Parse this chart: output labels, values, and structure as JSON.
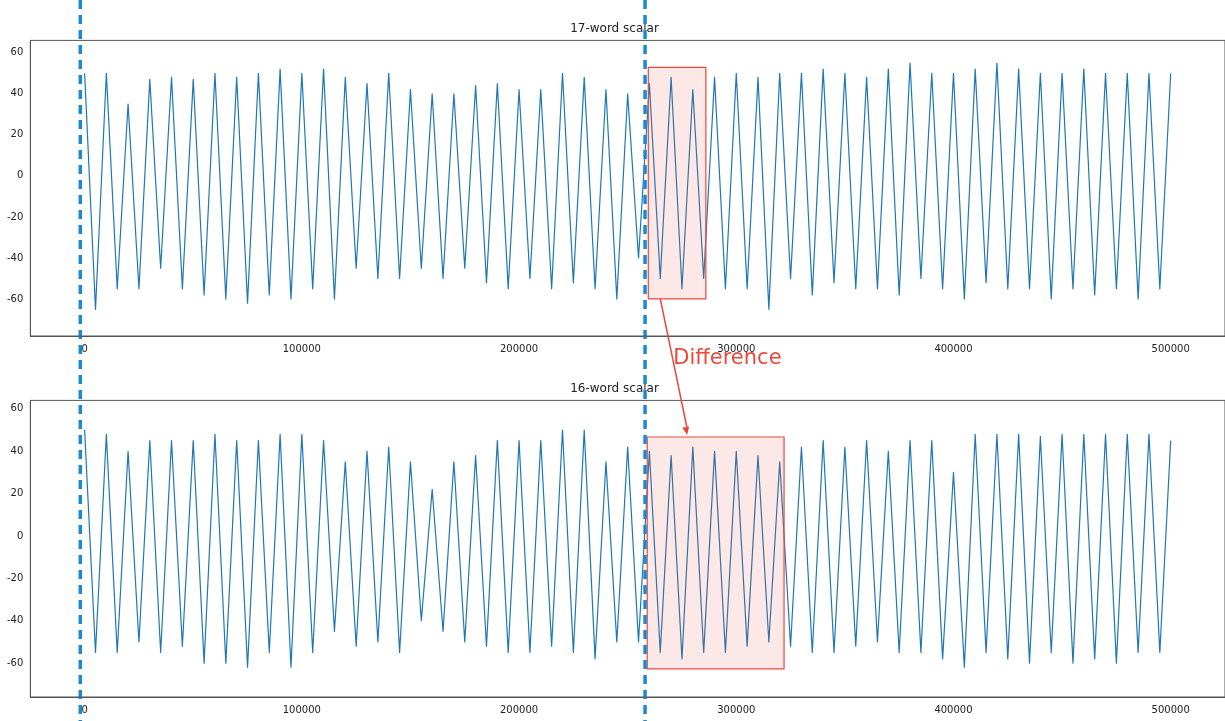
{
  "chart_data": [
    {
      "type": "line",
      "title": "17-word scalar",
      "x": [
        0,
        5000,
        10000,
        15000,
        20000,
        25000,
        30000,
        35000,
        40000,
        45000,
        50000,
        55000,
        60000,
        65000,
        70000,
        75000,
        80000,
        85000,
        90000,
        95000,
        100000,
        105000,
        110000,
        115000,
        120000,
        125000,
        130000,
        135000,
        140000,
        145000,
        150000,
        155000,
        160000,
        165000,
        170000,
        175000,
        180000,
        185000,
        190000,
        195000,
        200000,
        205000,
        210000,
        215000,
        220000,
        225000,
        230000,
        235000,
        240000,
        245000,
        250000,
        255000,
        260000,
        265000,
        270000,
        275000,
        280000,
        285000,
        290000,
        295000,
        300000,
        305000,
        310000,
        315000,
        320000,
        325000,
        330000,
        335000,
        340000,
        345000,
        350000,
        355000,
        360000,
        365000,
        370000,
        375000,
        380000,
        385000,
        390000,
        395000,
        400000,
        405000,
        410000,
        415000,
        420000,
        425000,
        430000,
        435000,
        440000,
        445000,
        450000,
        455000,
        460000,
        465000,
        470000,
        475000,
        480000,
        485000,
        490000,
        495000,
        500000
      ],
      "series": [
        {
          "color": "#1f77b4",
          "values": [
            50,
            -65,
            50,
            -55,
            35,
            -55,
            47,
            -45,
            48,
            -55,
            47,
            -58,
            50,
            -60,
            48,
            -62,
            50,
            -58,
            52,
            -60,
            50,
            -55,
            52,
            -60,
            48,
            -45,
            45,
            -50,
            50,
            -50,
            42,
            -45,
            40,
            -50,
            40,
            -45,
            44,
            -52,
            45,
            -55,
            42,
            -50,
            42,
            -55,
            50,
            -52,
            48,
            -55,
            42,
            -60,
            40,
            -40,
            45,
            -50,
            48,
            -55,
            42,
            -50,
            48,
            -55,
            50,
            -55,
            48,
            -65,
            50,
            -50,
            50,
            -58,
            52,
            -52,
            50,
            -55,
            48,
            -55,
            52,
            -58,
            55,
            -50,
            50,
            -55,
            50,
            -60,
            52,
            -52,
            55,
            -55,
            52,
            -55,
            50,
            -60,
            50,
            -55,
            52,
            -58,
            50,
            -55,
            50,
            -60,
            50,
            -55,
            50
          ]
        }
      ],
      "xlim": [
        -25000,
        525000
      ],
      "xticks": [
        0,
        100000,
        200000,
        300000,
        400000,
        500000
      ],
      "ylim": [
        -78,
        66
      ],
      "yticks": [
        -60,
        -40,
        -20,
        0,
        20,
        40,
        60
      ],
      "ref_lines": [
        {
          "axis": "x",
          "value": -2000,
          "color": "#1a8ad4",
          "line_style": "dashed"
        },
        {
          "axis": "x",
          "value": 258000,
          "color": "#1a8ad4",
          "line_style": "dashed"
        }
      ],
      "bands": [
        {
          "axis": "x",
          "from": 259500,
          "to": 286000,
          "color": "#e8483c"
        }
      ],
      "annotations": [
        "Difference"
      ]
    },
    {
      "type": "line",
      "title": "16-word scalar",
      "x": [
        0,
        5000,
        10000,
        15000,
        20000,
        25000,
        30000,
        35000,
        40000,
        45000,
        50000,
        55000,
        60000,
        65000,
        70000,
        75000,
        80000,
        85000,
        90000,
        95000,
        100000,
        105000,
        110000,
        115000,
        120000,
        125000,
        130000,
        135000,
        140000,
        145000,
        150000,
        155000,
        160000,
        165000,
        170000,
        175000,
        180000,
        185000,
        190000,
        195000,
        200000,
        205000,
        210000,
        215000,
        220000,
        225000,
        230000,
        235000,
        240000,
        245000,
        250000,
        255000,
        260000,
        265000,
        270000,
        275000,
        280000,
        285000,
        290000,
        295000,
        300000,
        305000,
        310000,
        315000,
        320000,
        325000,
        330000,
        335000,
        340000,
        345000,
        350000,
        355000,
        360000,
        365000,
        370000,
        375000,
        380000,
        385000,
        390000,
        395000,
        400000,
        405000,
        410000,
        415000,
        420000,
        425000,
        430000,
        435000,
        440000,
        445000,
        450000,
        455000,
        460000,
        465000,
        470000,
        475000,
        480000,
        485000,
        490000,
        495000,
        500000
      ],
      "series": [
        {
          "color": "#1f77b4",
          "values": [
            50,
            -55,
            48,
            -55,
            40,
            -50,
            45,
            -55,
            45,
            -52,
            45,
            -60,
            48,
            -60,
            45,
            -62,
            45,
            -55,
            48,
            -62,
            48,
            -55,
            45,
            -45,
            35,
            -52,
            40,
            -50,
            42,
            -55,
            35,
            -40,
            22,
            -45,
            35,
            -50,
            38,
            -52,
            45,
            -55,
            45,
            -55,
            45,
            -52,
            50,
            -55,
            50,
            -58,
            35,
            -50,
            42,
            -50,
            40,
            -55,
            38,
            -58,
            42,
            -55,
            40,
            -55,
            40,
            -52,
            38,
            -50,
            35,
            -52,
            42,
            -55,
            45,
            -55,
            42,
            -52,
            45,
            -50,
            40,
            -55,
            45,
            -55,
            45,
            -58,
            30,
            -62,
            48,
            -55,
            48,
            -58,
            48,
            -60,
            47,
            -55,
            48,
            -60,
            48,
            -58,
            48,
            -60,
            48,
            -55,
            48,
            -55,
            45
          ]
        }
      ],
      "xlim": [
        -25000,
        525000
      ],
      "xticks": [
        0,
        100000,
        200000,
        300000,
        400000,
        500000
      ],
      "ylim": [
        -76,
        64
      ],
      "yticks": [
        -60,
        -40,
        -20,
        0,
        20,
        40,
        60
      ],
      "ref_lines": [
        {
          "axis": "x",
          "value": -2000,
          "color": "#1a8ad4",
          "line_style": "dashed"
        },
        {
          "axis": "x",
          "value": 258000,
          "color": "#1a8ad4",
          "line_style": "dashed"
        }
      ],
      "bands": [
        {
          "axis": "x",
          "from": 259000,
          "to": 322000,
          "color": "#e8483c"
        }
      ]
    }
  ]
}
